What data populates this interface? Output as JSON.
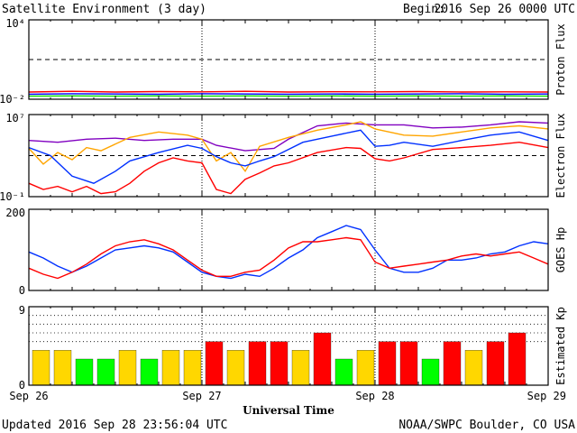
{
  "header": {
    "title": "Satellite Environment (3 day)",
    "begin_label": "Begin:",
    "begin_value": "2016 Sep 26 0000 UTC"
  },
  "footer": {
    "updated": "Updated 2016 Sep 28 23:56:04 UTC",
    "source": "NOAA/SWPC Boulder, CO USA",
    "xlabel": "Universal Time"
  },
  "chart_data": [
    {
      "panel": "proton",
      "type": "line",
      "ylabel": "Proton Flux",
      "scale": "log",
      "ylim": [
        0.01,
        10000
      ],
      "tick_labels": [
        "10⁴",
        "10⁻²"
      ],
      "threshold": 10,
      "series": [
        {
          "color": "#ff0000",
          "x": [
            0,
            6,
            12,
            18,
            24,
            30,
            36,
            42,
            48,
            54,
            60,
            66,
            72
          ],
          "y": [
            0.035,
            0.04,
            0.035,
            0.038,
            0.036,
            0.04,
            0.035,
            0.037,
            0.036,
            0.038,
            0.035,
            0.036,
            0.035
          ]
        },
        {
          "color": "#0000ff",
          "x": [
            0,
            6,
            12,
            18,
            24,
            30,
            36,
            42,
            48,
            54,
            60,
            66,
            72
          ],
          "y": [
            0.024,
            0.026,
            0.025,
            0.024,
            0.026,
            0.025,
            0.024,
            0.025,
            0.024,
            0.025,
            0.026,
            0.024,
            0.025
          ]
        },
        {
          "color": "#00dd00",
          "x": [
            0,
            6,
            12,
            18,
            24,
            30,
            36,
            42,
            48,
            54,
            60,
            66,
            72
          ],
          "y": [
            0.017,
            0.018,
            0.017,
            0.018,
            0.017,
            0.018,
            0.017,
            0.018,
            0.017,
            0.018,
            0.017,
            0.018,
            0.017
          ]
        }
      ]
    },
    {
      "panel": "electron",
      "type": "line",
      "ylabel": "Electron Flux",
      "scale": "log",
      "ylim": [
        0.1,
        10000000
      ],
      "tick_labels": [
        "10⁷",
        "10⁻¹"
      ],
      "threshold": 1000,
      "series": [
        {
          "color": "#8000c0",
          "x": [
            0,
            4,
            8,
            12,
            16,
            20,
            24,
            26,
            30,
            34,
            36,
            40,
            44,
            48,
            52,
            56,
            60,
            64,
            68,
            72
          ],
          "y": [
            30000,
            20000,
            40000,
            50000,
            30000,
            40000,
            40000,
            10000,
            3000,
            5000,
            40000,
            800000,
            1500000,
            1000000,
            1000000,
            500000,
            600000,
            1000000,
            2000000,
            1500000
          ]
        },
        {
          "color": "#ffa500",
          "x": [
            0,
            2,
            4,
            6,
            8,
            10,
            14,
            18,
            22,
            24,
            26,
            28,
            30,
            32,
            36,
            40,
            44,
            46,
            48,
            52,
            56,
            60,
            64,
            68,
            72
          ],
          "y": [
            5000,
            150,
            2000,
            400,
            6000,
            3000,
            60000,
            200000,
            100000,
            40000,
            300,
            2000,
            30,
            8000,
            60000,
            300000,
            1000000,
            2000000,
            400000,
            100000,
            80000,
            200000,
            500000,
            800000,
            400000
          ]
        },
        {
          "color": "#0030ff",
          "x": [
            0,
            3,
            6,
            9,
            12,
            14,
            18,
            22,
            24,
            26,
            28,
            30,
            32,
            34,
            38,
            42,
            46,
            48,
            50,
            52,
            56,
            60,
            64,
            68,
            72
          ],
          "y": [
            6000,
            1000,
            10,
            2,
            30,
            300,
            2000,
            10000,
            5000,
            800,
            200,
            100,
            300,
            800,
            20000,
            80000,
            300000,
            8000,
            10000,
            20000,
            8000,
            30000,
            100000,
            200000,
            30000
          ]
        },
        {
          "color": "#ff0000",
          "x": [
            0,
            2,
            4,
            6,
            8,
            10,
            12,
            14,
            16,
            18,
            20,
            22,
            24,
            26,
            28,
            30,
            32,
            34,
            36,
            40,
            44,
            46,
            48,
            50,
            52,
            56,
            60,
            64,
            68,
            72
          ],
          "y": [
            2,
            0.5,
            1,
            0.3,
            1,
            0.2,
            0.3,
            2,
            30,
            200,
            600,
            300,
            200,
            0.5,
            0.2,
            5,
            20,
            100,
            200,
            2000,
            6000,
            5000,
            500,
            300,
            600,
            4000,
            6000,
            10000,
            20000,
            6000
          ]
        }
      ]
    },
    {
      "panel": "hp",
      "type": "line",
      "ylabel": "GOES Hp",
      "ylim": [
        0,
        200
      ],
      "tick_labels": [
        "200",
        "0"
      ],
      "series": [
        {
          "color": "#0030ff",
          "x": [
            0,
            2,
            4,
            6,
            8,
            10,
            12,
            14,
            16,
            18,
            20,
            22,
            24,
            26,
            28,
            30,
            32,
            34,
            36,
            38,
            40,
            42,
            44,
            46,
            48,
            50,
            52,
            54,
            56,
            58,
            60,
            62,
            64,
            66,
            68,
            70,
            72
          ],
          "y": [
            95,
            80,
            60,
            45,
            60,
            80,
            100,
            105,
            110,
            105,
            95,
            70,
            45,
            35,
            30,
            40,
            35,
            55,
            80,
            100,
            130,
            145,
            160,
            150,
            100,
            55,
            45,
            45,
            55,
            75,
            75,
            80,
            90,
            95,
            110,
            120,
            115
          ]
        },
        {
          "color": "#ff0000",
          "x": [
            0,
            2,
            4,
            6,
            8,
            10,
            12,
            14,
            16,
            18,
            20,
            22,
            24,
            26,
            28,
            30,
            32,
            34,
            36,
            38,
            40,
            42,
            44,
            46,
            48,
            50,
            52,
            54,
            56,
            58,
            60,
            62,
            64,
            66,
            68,
            70,
            72
          ],
          "y": [
            55,
            40,
            30,
            45,
            65,
            90,
            110,
            120,
            125,
            115,
            100,
            75,
            50,
            35,
            35,
            45,
            50,
            75,
            105,
            120,
            120,
            125,
            130,
            125,
            70,
            55,
            60,
            65,
            70,
            75,
            85,
            90,
            85,
            90,
            95,
            80,
            65
          ]
        }
      ]
    },
    {
      "panel": "kp",
      "type": "bar",
      "ylabel": "Estimated Kp",
      "ylim": [
        0,
        9
      ],
      "tick_labels": [
        "9",
        "0"
      ],
      "colors": {
        "quiet": "#00ff00",
        "unsettled": "#ffd700",
        "storm": "#ff0000"
      },
      "values": [
        4,
        4,
        3,
        3,
        4,
        3,
        4,
        4,
        5,
        4,
        5,
        5,
        4,
        6,
        3,
        4,
        5,
        5,
        3,
        5,
        4,
        5,
        6,
        0
      ],
      "levels": [
        "unsettled",
        "unsettled",
        "quiet",
        "quiet",
        "unsettled",
        "quiet",
        "unsettled",
        "unsettled",
        "storm",
        "unsettled",
        "storm",
        "storm",
        "unsettled",
        "storm",
        "quiet",
        "unsettled",
        "storm",
        "storm",
        "quiet",
        "storm",
        "unsettled",
        "storm",
        "storm",
        "quiet"
      ]
    }
  ],
  "axis": {
    "x_ticks": [
      "Sep 26",
      "Sep 27",
      "Sep 28",
      "Sep 29"
    ],
    "x_range_hours": [
      0,
      72
    ]
  }
}
